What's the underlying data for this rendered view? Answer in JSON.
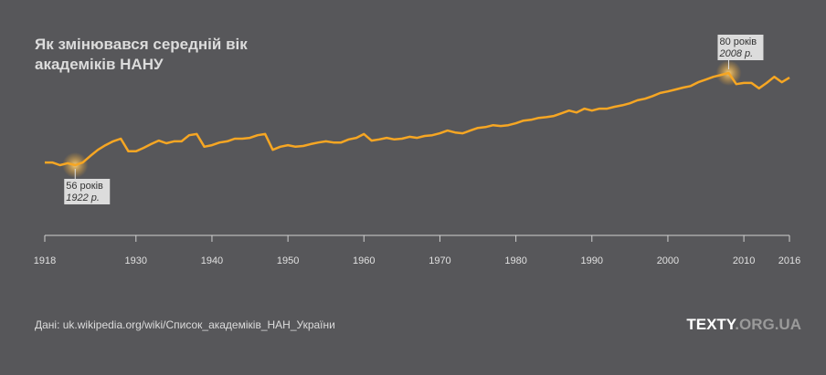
{
  "chart_data": {
    "type": "line",
    "title": [
      "Як змінювався середній вік",
      "академіків НАНУ"
    ],
    "x": [
      1918,
      1919,
      1920,
      1921,
      1922,
      1923,
      1924,
      1925,
      1926,
      1927,
      1928,
      1929,
      1930,
      1931,
      1932,
      1933,
      1934,
      1935,
      1936,
      1937,
      1938,
      1939,
      1940,
      1941,
      1942,
      1943,
      1944,
      1945,
      1946,
      1947,
      1948,
      1949,
      1950,
      1951,
      1952,
      1953,
      1954,
      1955,
      1956,
      1957,
      1958,
      1959,
      1960,
      1961,
      1962,
      1963,
      1964,
      1965,
      1966,
      1967,
      1968,
      1969,
      1970,
      1971,
      1972,
      1973,
      1974,
      1975,
      1976,
      1977,
      1978,
      1979,
      1980,
      1981,
      1982,
      1983,
      1984,
      1985,
      1986,
      1987,
      1988,
      1989,
      1990,
      1991,
      1992,
      1993,
      1994,
      1995,
      1996,
      1997,
      1998,
      1999,
      2000,
      2001,
      2002,
      2003,
      2004,
      2005,
      2006,
      2007,
      2008,
      2009,
      2010,
      2011,
      2012,
      2013,
      2014,
      2015,
      2016
    ],
    "series": [
      {
        "color": "#f6a623",
        "values": [
          56.7,
          56.7,
          56.0,
          56.5,
          56.0,
          56.7,
          58.4,
          60.0,
          61.2,
          62.2,
          62.9,
          59.6,
          59.6,
          60.5,
          61.5,
          62.4,
          61.7,
          62.2,
          62.2,
          63.8,
          64.1,
          60.8,
          61.2,
          61.9,
          62.2,
          62.9,
          62.9,
          63.1,
          63.8,
          64.1,
          60.0,
          60.8,
          61.2,
          60.8,
          61.0,
          61.5,
          61.9,
          62.2,
          61.9,
          61.9,
          62.7,
          63.1,
          64.1,
          62.4,
          62.7,
          63.1,
          62.7,
          62.9,
          63.4,
          63.1,
          63.6,
          63.8,
          64.3,
          65.0,
          64.5,
          64.3,
          65.0,
          65.7,
          65.9,
          66.4,
          66.2,
          66.4,
          66.9,
          67.6,
          67.8,
          68.3,
          68.5,
          68.8,
          69.5,
          70.2,
          69.7,
          70.7,
          70.2,
          70.7,
          70.7,
          71.2,
          71.6,
          72.1,
          72.9,
          73.3,
          74.0,
          74.8,
          75.2,
          75.7,
          76.2,
          76.6,
          77.6,
          78.3,
          79.0,
          79.5,
          80.0,
          77.1,
          77.4,
          77.4,
          76.0,
          77.4,
          79.0,
          77.6,
          78.8
        ]
      }
    ],
    "xlim": [
      1918,
      2016
    ],
    "xticks": [
      1918,
      1930,
      1940,
      1950,
      1960,
      1970,
      1980,
      1990,
      2000,
      2010,
      2016
    ],
    "annotations": [
      {
        "x": 1922,
        "value": 56,
        "label": "56 років",
        "date": "1922 р."
      },
      {
        "x": 2008,
        "value": 80,
        "label": "80 років",
        "date": "2008 р."
      }
    ],
    "source": "Дані: uk.wikipedia.org/wiki/Список_академіків_НАН_України",
    "logo": {
      "name": "TEXTY",
      "domain": ".ORG.UA"
    }
  }
}
